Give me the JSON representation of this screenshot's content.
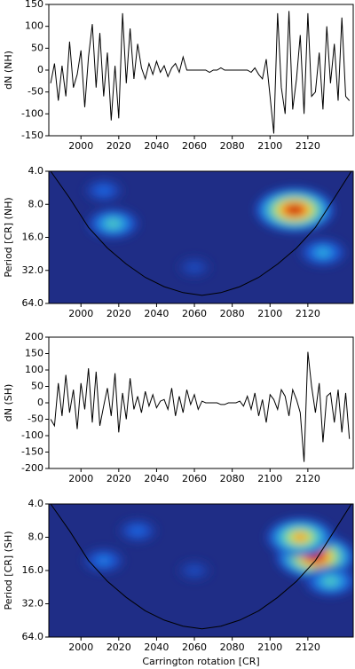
{
  "chart_data": [
    {
      "type": "line",
      "ylabel": "dN (NH)",
      "color": "#000000",
      "x": [
        1984,
        1986,
        1988,
        1990,
        1992,
        1994,
        1996,
        1998,
        2000,
        2002,
        2004,
        2006,
        2008,
        2010,
        2012,
        2014,
        2016,
        2018,
        2020,
        2022,
        2024,
        2026,
        2028,
        2030,
        2032,
        2034,
        2036,
        2038,
        2040,
        2042,
        2044,
        2046,
        2048,
        2050,
        2052,
        2054,
        2056,
        2058,
        2060,
        2062,
        2064,
        2066,
        2068,
        2070,
        2072,
        2074,
        2076,
        2078,
        2080,
        2082,
        2084,
        2086,
        2088,
        2090,
        2092,
        2094,
        2096,
        2098,
        2100,
        2102,
        2104,
        2106,
        2108,
        2110,
        2112,
        2114,
        2116,
        2118,
        2120,
        2122,
        2124,
        2126,
        2128,
        2130,
        2132,
        2134,
        2136,
        2138,
        2140,
        2142
      ],
      "values": [
        -30,
        15,
        -70,
        10,
        -60,
        65,
        -40,
        -10,
        45,
        -85,
        30,
        105,
        -40,
        85,
        -60,
        40,
        -115,
        10,
        -110,
        130,
        -30,
        95,
        -20,
        60,
        5,
        -20,
        15,
        -10,
        20,
        -5,
        10,
        -15,
        5,
        15,
        -5,
        30,
        0,
        0,
        0,
        0,
        0,
        0,
        -5,
        0,
        0,
        5,
        0,
        0,
        0,
        0,
        0,
        0,
        0,
        -5,
        5,
        -10,
        -20,
        25,
        -60,
        -145,
        130,
        -40,
        -100,
        135,
        -90,
        -20,
        80,
        -100,
        130,
        -60,
        -50,
        40,
        -90,
        100,
        -30,
        60,
        -70,
        120,
        -60,
        -70
      ],
      "xlim": [
        1983,
        2144
      ],
      "xticks": [
        2000,
        2020,
        2040,
        2060,
        2080,
        2100,
        2120
      ],
      "ylim": [
        -150,
        150
      ],
      "yticks": [
        -150,
        -100,
        -50,
        0,
        50,
        100,
        150
      ]
    },
    {
      "type": "wavelet",
      "ylabel": "Period [CR] (NH)",
      "background": "#1f2d86",
      "log_y": true,
      "y_inverted": true,
      "xlim": [
        1983,
        2144
      ],
      "xticks": [
        2000,
        2020,
        2040,
        2060,
        2080,
        2100,
        2120
      ],
      "ylim": [
        4,
        64
      ],
      "yticks": [
        {
          "value": 4,
          "label": "4.0"
        },
        {
          "value": 8,
          "label": "8.0"
        },
        {
          "value": 16,
          "label": "16.0"
        },
        {
          "value": 32,
          "label": "32.0"
        },
        {
          "value": 64,
          "label": "64.0"
        }
      ],
      "hotspots": [
        {
          "x": 2113,
          "period": 9,
          "power": 1.0
        },
        {
          "x": 2017,
          "period": 12,
          "power": 0.5
        },
        {
          "x": 2128,
          "period": 22,
          "power": 0.4
        },
        {
          "x": 2012,
          "period": 6,
          "power": 0.25
        },
        {
          "x": 2060,
          "period": 30,
          "power": 0.15
        }
      ],
      "coi": {
        "x": [
          1984,
          1994,
          2004,
          2014,
          2024,
          2034,
          2044,
          2054,
          2064,
          2074,
          2084,
          2094,
          2104,
          2114,
          2124,
          2134,
          2143
        ],
        "values": [
          4,
          7,
          13,
          20,
          28,
          37,
          45,
          51,
          54,
          51,
          45,
          37,
          28,
          20,
          13,
          7,
          4
        ]
      }
    },
    {
      "type": "line",
      "ylabel": "dN (SH)",
      "color": "#000000",
      "x": [
        1984,
        1986,
        1988,
        1990,
        1992,
        1994,
        1996,
        1998,
        2000,
        2002,
        2004,
        2006,
        2008,
        2010,
        2012,
        2014,
        2016,
        2018,
        2020,
        2022,
        2024,
        2026,
        2028,
        2030,
        2032,
        2034,
        2036,
        2038,
        2040,
        2042,
        2044,
        2046,
        2048,
        2050,
        2052,
        2054,
        2056,
        2058,
        2060,
        2062,
        2064,
        2066,
        2068,
        2070,
        2072,
        2074,
        2076,
        2078,
        2080,
        2082,
        2084,
        2086,
        2088,
        2090,
        2092,
        2094,
        2096,
        2098,
        2100,
        2102,
        2104,
        2106,
        2108,
        2110,
        2112,
        2114,
        2116,
        2118,
        2120,
        2122,
        2124,
        2126,
        2128,
        2130,
        2132,
        2134,
        2136,
        2138,
        2140,
        2142
      ],
      "values": [
        -50,
        -70,
        60,
        -40,
        85,
        -30,
        40,
        -80,
        60,
        -20,
        105,
        -60,
        95,
        -70,
        -10,
        45,
        -40,
        90,
        -90,
        30,
        -50,
        75,
        -20,
        20,
        -30,
        35,
        -10,
        25,
        -15,
        5,
        10,
        -20,
        45,
        -40,
        20,
        -30,
        40,
        -5,
        25,
        -20,
        5,
        0,
        0,
        0,
        0,
        -5,
        -5,
        0,
        0,
        0,
        5,
        -10,
        20,
        -20,
        30,
        -40,
        10,
        -60,
        25,
        10,
        -20,
        40,
        20,
        -40,
        40,
        10,
        -30,
        -180,
        155,
        50,
        -30,
        60,
        -120,
        20,
        30,
        -60,
        40,
        -90,
        30,
        -110
      ],
      "xlim": [
        1983,
        2144
      ],
      "xticks": [
        2000,
        2020,
        2040,
        2060,
        2080,
        2100,
        2120
      ],
      "ylim": [
        -200,
        200
      ],
      "yticks": [
        -200,
        -150,
        -100,
        -50,
        0,
        50,
        100,
        150,
        200
      ]
    },
    {
      "type": "wavelet",
      "ylabel": "Period [CR] (SH)",
      "xlabel": "Carrington rotation [CR]",
      "background": "#1f2d86",
      "log_y": true,
      "y_inverted": true,
      "xlim": [
        1983,
        2144
      ],
      "xticks": [
        2000,
        2020,
        2040,
        2060,
        2080,
        2100,
        2120
      ],
      "ylim": [
        4,
        64
      ],
      "yticks": [
        {
          "value": 4,
          "label": "4.0"
        },
        {
          "value": 8,
          "label": "8.0"
        },
        {
          "value": 16,
          "label": "16.0"
        },
        {
          "value": 32,
          "label": "32.0"
        },
        {
          "value": 64,
          "label": "64.0"
        }
      ],
      "hotspots": [
        {
          "x": 2124,
          "period": 12,
          "power": 1.0
        },
        {
          "x": 2116,
          "period": 8,
          "power": 0.8
        },
        {
          "x": 2132,
          "period": 20,
          "power": 0.5
        },
        {
          "x": 2012,
          "period": 13,
          "power": 0.3
        },
        {
          "x": 2030,
          "period": 7,
          "power": 0.25
        },
        {
          "x": 2060,
          "period": 16,
          "power": 0.15
        }
      ],
      "coi": {
        "x": [
          1984,
          1994,
          2004,
          2014,
          2024,
          2034,
          2044,
          2054,
          2064,
          2074,
          2084,
          2094,
          2104,
          2114,
          2124,
          2134,
          2143
        ],
        "values": [
          4,
          7,
          13,
          20,
          28,
          37,
          45,
          51,
          54,
          51,
          45,
          37,
          28,
          20,
          13,
          7,
          4
        ]
      }
    }
  ]
}
